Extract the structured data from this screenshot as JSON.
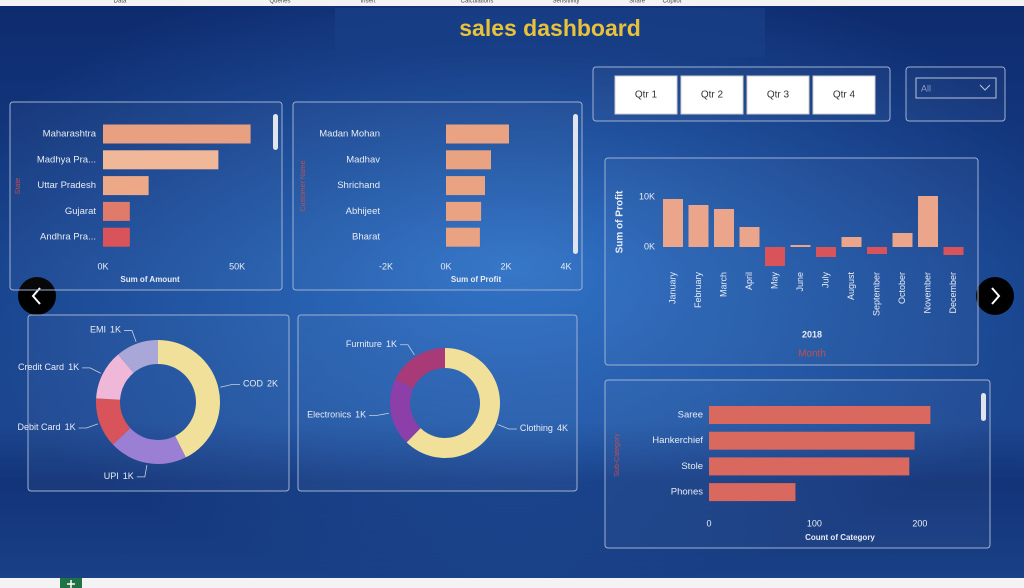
{
  "dashboard": {
    "title": "sales dashboard",
    "ribbon": [
      "Data",
      "Queries",
      "Insert",
      "Calculations",
      "Sensitivity",
      "Share",
      "Copilot"
    ],
    "quarters": [
      "Qtr 1",
      "Qtr 2",
      "Qtr 3",
      "Qtr 4"
    ],
    "filter": "All"
  },
  "chart_data": [
    {
      "type": "hbar",
      "y_label": "State",
      "x_label": "Sum of Amount",
      "categories": [
        "Maharashtra",
        "Madhya Pra...",
        "Uttar Pradesh",
        "Gujarat",
        "Andhra Pra..."
      ],
      "values": [
        55000,
        43000,
        17000,
        10000,
        10000
      ],
      "colors": [
        "#e9a080",
        "#f0b898",
        "#eda888",
        "#e07a6a",
        "#d9545a"
      ],
      "xlim": [
        0,
        60000
      ],
      "xticks": [
        {
          "value": 0,
          "label": "0K"
        },
        {
          "value": 50000,
          "label": "50K"
        }
      ]
    },
    {
      "type": "hbar",
      "y_label": "Customer Name",
      "x_label": "Sum of Profit",
      "categories": [
        "Madan Mohan",
        "Madhav",
        "Shrichand",
        "Abhijeet",
        "Bharat"
      ],
      "values": [
        2100,
        1500,
        1300,
        1170,
        1130
      ],
      "color": "#e9a282",
      "xlim": [
        -2000,
        4000
      ],
      "xticks": [
        {
          "value": -2000,
          "label": "-2K"
        },
        {
          "value": 0,
          "label": "0K"
        },
        {
          "value": 2000,
          "label": "2K"
        },
        {
          "value": 4000,
          "label": "4K"
        }
      ]
    },
    {
      "type": "vbar",
      "y_label": "Sum of Profit",
      "x_label": "Month",
      "x_group": "2018",
      "categories": [
        "January",
        "February",
        "March",
        "April",
        "May",
        "June",
        "July",
        "August",
        "September",
        "October",
        "November",
        "December"
      ],
      "values": [
        9600,
        8400,
        7600,
        4000,
        -3800,
        400,
        -2000,
        2000,
        -1400,
        2800,
        10200,
        -1600
      ],
      "colors": [
        "#eba58a",
        "#eba58a",
        "#eba58a",
        "#eba58a",
        "#d9545a",
        "#eba58a",
        "#d9545a",
        "#eba58a",
        "#d9545a",
        "#eba58a",
        "#eba58a",
        "#d9545a"
      ],
      "ylim": [
        -5000,
        12000
      ],
      "yticks": [
        {
          "value": 0,
          "label": "0K"
        },
        {
          "value": 10000,
          "label": "10K"
        }
      ]
    },
    {
      "type": "donut",
      "categories": [
        "COD",
        "UPI",
        "Debit Card",
        "Credit Card",
        "EMI"
      ],
      "values": [
        2300,
        1100,
        700,
        700,
        600
      ],
      "value_labels": [
        "2K",
        "1K",
        "1K",
        "1K",
        "1K"
      ],
      "colors": [
        "#f0e09a",
        "#9b7fd4",
        "#d9545a",
        "#f0b8d8",
        "#a9a6d8"
      ]
    },
    {
      "type": "donut",
      "categories": [
        "Clothing",
        "Electronics",
        "Furniture"
      ],
      "values": [
        3800,
        1200,
        1100
      ],
      "value_labels": [
        "4K",
        "1K",
        "1K"
      ],
      "colors": [
        "#f0e09a",
        "#8c3fa8",
        "#a83a78"
      ]
    },
    {
      "type": "hbar",
      "y_label": "Sub-Category",
      "x_label": "Count of Category",
      "categories": [
        "Saree",
        "Hankerchief",
        "Stole",
        "Phones"
      ],
      "values": [
        210,
        195,
        190,
        82
      ],
      "color": "#d9685f",
      "xlim": [
        0,
        240
      ],
      "xticks": [
        0,
        100,
        200
      ]
    }
  ]
}
